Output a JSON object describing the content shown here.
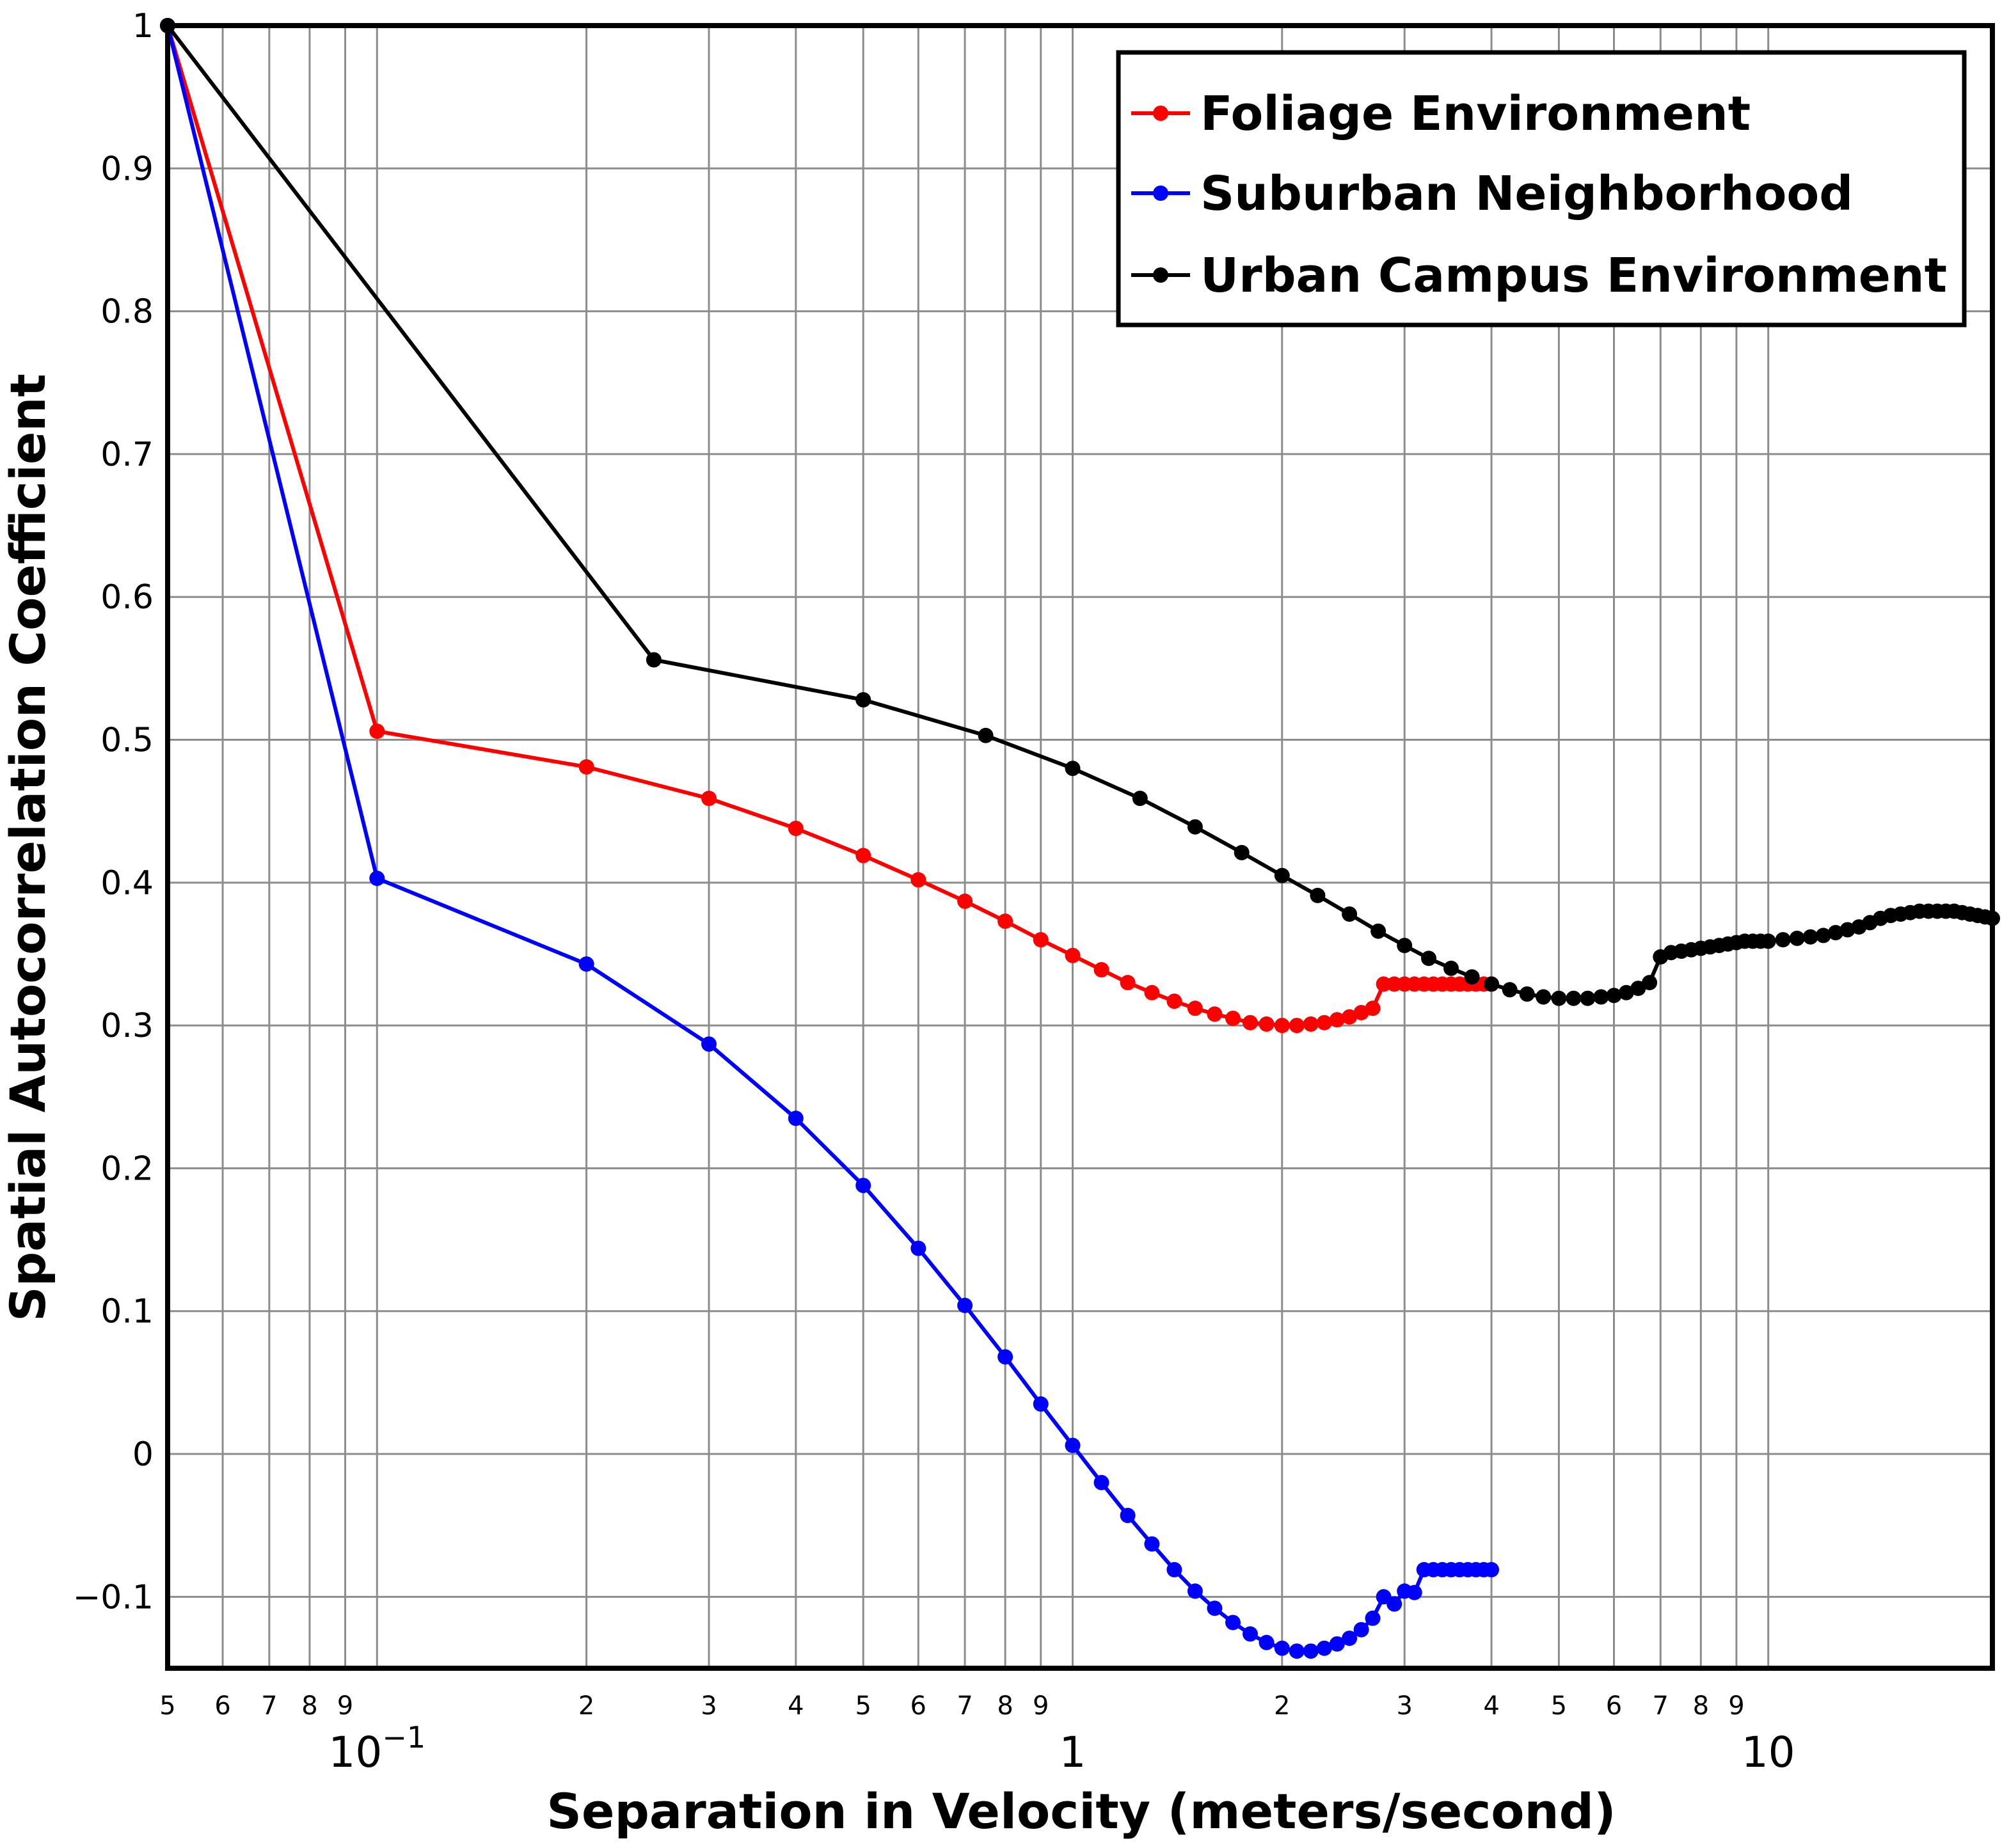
{
  "chart_data": {
    "type": "line",
    "xlabel": "Separation in Velocity (meters/second)",
    "ylabel": "Spatial Autocorrelation Coefficient",
    "xscale": "log",
    "xlim": [
      0.05,
      21
    ],
    "ylim": [
      -0.15,
      1.0
    ],
    "grid": true,
    "legend_position": "top-right",
    "y_ticks": [
      {
        "value": 1.0,
        "label": "1"
      },
      {
        "value": 0.9,
        "label": "0.9"
      },
      {
        "value": 0.8,
        "label": "0.8"
      },
      {
        "value": 0.7,
        "label": "0.7"
      },
      {
        "value": 0.6,
        "label": "0.6"
      },
      {
        "value": 0.5,
        "label": "0.5"
      },
      {
        "value": 0.4,
        "label": "0.4"
      },
      {
        "value": 0.3,
        "label": "0.3"
      },
      {
        "value": 0.2,
        "label": "0.2"
      },
      {
        "value": 0.1,
        "label": "0.1"
      },
      {
        "value": 0.0,
        "label": "0"
      },
      {
        "value": -0.1,
        "label": "−0.1"
      }
    ],
    "x_minor_ticks": [
      {
        "value": 0.05,
        "label": "5"
      },
      {
        "value": 0.06,
        "label": "6"
      },
      {
        "value": 0.07,
        "label": "7"
      },
      {
        "value": 0.08,
        "label": "8"
      },
      {
        "value": 0.09,
        "label": "9"
      },
      {
        "value": 0.2,
        "label": "2"
      },
      {
        "value": 0.3,
        "label": "3"
      },
      {
        "value": 0.4,
        "label": "4"
      },
      {
        "value": 0.5,
        "label": "5"
      },
      {
        "value": 0.6,
        "label": "6"
      },
      {
        "value": 0.7,
        "label": "7"
      },
      {
        "value": 0.8,
        "label": "8"
      },
      {
        "value": 0.9,
        "label": "9"
      },
      {
        "value": 2,
        "label": "2"
      },
      {
        "value": 3,
        "label": "3"
      },
      {
        "value": 4,
        "label": "4"
      },
      {
        "value": 5,
        "label": "5"
      },
      {
        "value": 6,
        "label": "6"
      },
      {
        "value": 7,
        "label": "7"
      },
      {
        "value": 8,
        "label": "8"
      },
      {
        "value": 9,
        "label": "9"
      }
    ],
    "x_major_ticks": [
      {
        "value": 0.1,
        "base": "10",
        "exp": "−1"
      },
      {
        "value": 1,
        "base": "1",
        "exp": ""
      },
      {
        "value": 10,
        "base": "10",
        "exp": ""
      }
    ],
    "series": [
      {
        "name": "Foliage Environment",
        "color": "#ff0000",
        "points": [
          [
            0.05,
            1.0
          ],
          [
            0.1,
            0.506
          ],
          [
            0.2,
            0.481
          ],
          [
            0.3,
            0.459
          ],
          [
            0.4,
            0.438
          ],
          [
            0.5,
            0.419
          ],
          [
            0.6,
            0.402
          ],
          [
            0.7,
            0.387
          ],
          [
            0.8,
            0.373
          ],
          [
            0.9,
            0.36
          ],
          [
            1.0,
            0.349
          ],
          [
            1.1,
            0.339
          ],
          [
            1.2,
            0.33
          ],
          [
            1.3,
            0.323
          ],
          [
            1.4,
            0.317
          ],
          [
            1.5,
            0.312
          ],
          [
            1.6,
            0.308
          ],
          [
            1.7,
            0.305
          ],
          [
            1.8,
            0.302
          ],
          [
            1.9,
            0.301
          ],
          [
            2.0,
            0.3
          ],
          [
            2.1,
            0.3
          ],
          [
            2.2,
            0.301
          ],
          [
            2.3,
            0.302
          ],
          [
            2.4,
            0.304
          ],
          [
            2.5,
            0.306
          ],
          [
            2.6,
            0.309
          ],
          [
            2.7,
            0.312
          ],
          [
            2.8,
            0.329
          ],
          [
            2.9,
            0.329
          ],
          [
            3.0,
            0.329
          ],
          [
            3.1,
            0.329
          ],
          [
            3.2,
            0.329
          ],
          [
            3.3,
            0.329
          ],
          [
            3.4,
            0.329
          ],
          [
            3.5,
            0.329
          ],
          [
            3.6,
            0.329
          ],
          [
            3.7,
            0.329
          ],
          [
            3.8,
            0.329
          ],
          [
            3.9,
            0.329
          ],
          [
            4.0,
            0.329
          ]
        ]
      },
      {
        "name": "Suburban Neighborhood",
        "color": "#0000ff",
        "points": [
          [
            0.05,
            1.0
          ],
          [
            0.1,
            0.403
          ],
          [
            0.2,
            0.343
          ],
          [
            0.3,
            0.287
          ],
          [
            0.4,
            0.235
          ],
          [
            0.5,
            0.188
          ],
          [
            0.6,
            0.144
          ],
          [
            0.7,
            0.104
          ],
          [
            0.8,
            0.068
          ],
          [
            0.9,
            0.035
          ],
          [
            1.0,
            0.006
          ],
          [
            1.1,
            -0.02
          ],
          [
            1.2,
            -0.043
          ],
          [
            1.3,
            -0.063
          ],
          [
            1.4,
            -0.081
          ],
          [
            1.5,
            -0.096
          ],
          [
            1.6,
            -0.108
          ],
          [
            1.7,
            -0.118
          ],
          [
            1.8,
            -0.126
          ],
          [
            1.9,
            -0.132
          ],
          [
            2.0,
            -0.136
          ],
          [
            2.1,
            -0.138
          ],
          [
            2.2,
            -0.138
          ],
          [
            2.3,
            -0.136
          ],
          [
            2.4,
            -0.133
          ],
          [
            2.5,
            -0.129
          ],
          [
            2.6,
            -0.123
          ],
          [
            2.7,
            -0.115
          ],
          [
            2.8,
            -0.1
          ],
          [
            2.9,
            -0.105
          ],
          [
            3.0,
            -0.096
          ],
          [
            3.1,
            -0.097
          ],
          [
            3.2,
            -0.081
          ],
          [
            3.3,
            -0.081
          ],
          [
            3.4,
            -0.081
          ],
          [
            3.5,
            -0.081
          ],
          [
            3.6,
            -0.081
          ],
          [
            3.7,
            -0.081
          ],
          [
            3.8,
            -0.081
          ],
          [
            3.9,
            -0.081
          ],
          [
            4.0,
            -0.081
          ]
        ]
      },
      {
        "name": "Urban Campus Environment",
        "color": "#000000",
        "points": [
          [
            0.05,
            1.0
          ],
          [
            0.25,
            0.556
          ],
          [
            0.5,
            0.528
          ],
          [
            0.75,
            0.503
          ],
          [
            1.0,
            0.48
          ],
          [
            1.25,
            0.459
          ],
          [
            1.5,
            0.439
          ],
          [
            1.75,
            0.421
          ],
          [
            2.0,
            0.405
          ],
          [
            2.25,
            0.391
          ],
          [
            2.5,
            0.378
          ],
          [
            2.75,
            0.366
          ],
          [
            3.0,
            0.356
          ],
          [
            3.25,
            0.347
          ],
          [
            3.5,
            0.34
          ],
          [
            3.75,
            0.334
          ],
          [
            4.0,
            0.329
          ],
          [
            4.25,
            0.325
          ],
          [
            4.5,
            0.322
          ],
          [
            4.75,
            0.32
          ],
          [
            5.0,
            0.319
          ],
          [
            5.25,
            0.319
          ],
          [
            5.5,
            0.319
          ],
          [
            5.75,
            0.32
          ],
          [
            6.0,
            0.321
          ],
          [
            6.25,
            0.323
          ],
          [
            6.5,
            0.326
          ],
          [
            6.75,
            0.33
          ],
          [
            7.0,
            0.348
          ],
          [
            7.25,
            0.351
          ],
          [
            7.5,
            0.352
          ],
          [
            7.75,
            0.353
          ],
          [
            8.0,
            0.354
          ],
          [
            8.25,
            0.355
          ],
          [
            8.5,
            0.356
          ],
          [
            8.75,
            0.357
          ],
          [
            9.0,
            0.358
          ],
          [
            9.25,
            0.359
          ],
          [
            9.5,
            0.359
          ],
          [
            9.75,
            0.359
          ],
          [
            10.0,
            0.359
          ],
          [
            10.5,
            0.36
          ],
          [
            11.0,
            0.361
          ],
          [
            11.5,
            0.362
          ],
          [
            12.0,
            0.363
          ],
          [
            12.5,
            0.365
          ],
          [
            13.0,
            0.367
          ],
          [
            13.5,
            0.369
          ],
          [
            14.0,
            0.372
          ],
          [
            14.5,
            0.375
          ],
          [
            15.0,
            0.377
          ],
          [
            15.5,
            0.378
          ],
          [
            16.0,
            0.379
          ],
          [
            16.5,
            0.38
          ],
          [
            17.0,
            0.38
          ],
          [
            17.5,
            0.38
          ],
          [
            18.0,
            0.38
          ],
          [
            18.5,
            0.38
          ],
          [
            19.0,
            0.379
          ],
          [
            19.5,
            0.378
          ],
          [
            20.0,
            0.377
          ],
          [
            20.5,
            0.376
          ],
          [
            21.0,
            0.375
          ]
        ]
      }
    ]
  }
}
